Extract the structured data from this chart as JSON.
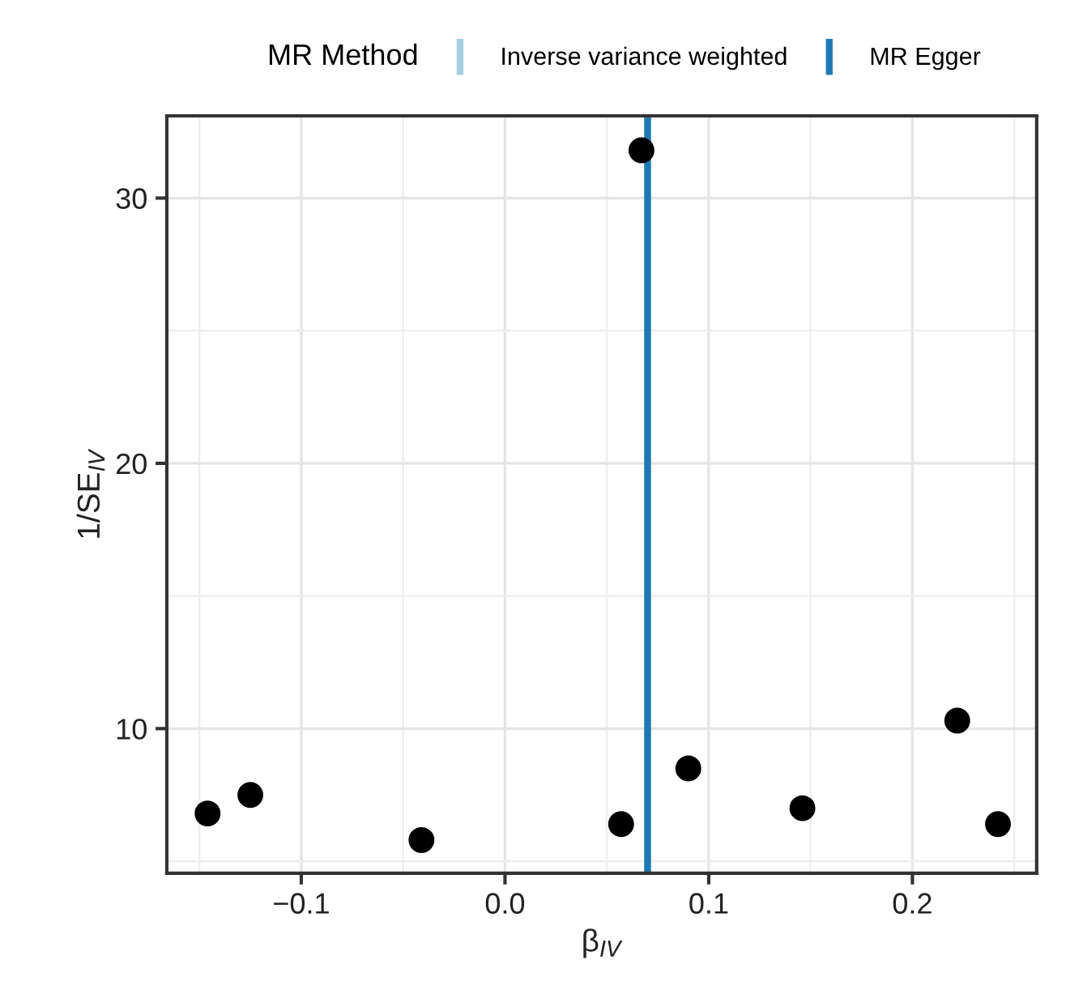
{
  "chart_data": {
    "type": "scatter",
    "xlabel": "β$_{IV}$",
    "ylabel": "1/SE$_{IV}$",
    "legend_title": "MR Method",
    "series": [
      {
        "color": "#000000",
        "x": [
          -0.146,
          -0.125,
          -0.041,
          0.057,
          0.067,
          0.09,
          0.146,
          0.222,
          0.242
        ],
        "values": [
          6.8,
          7.5,
          5.8,
          6.4,
          31.8,
          8.5,
          7.0,
          10.3,
          6.4
        ]
      }
    ],
    "ref_lines": [
      {
        "axis": "x",
        "value": 0.07,
        "label": "Inverse variance weighted",
        "color": "#a6cee3"
      },
      {
        "axis": "x",
        "value": 0.07,
        "label": "MR Egger",
        "color": "#1f78b4"
      }
    ],
    "xlim": [
      -0.166,
      0.261
    ],
    "xticks": [
      {
        "value": -0.1,
        "label": "−0.1"
      },
      {
        "value": 0.0,
        "label": "0.0"
      },
      {
        "value": 0.1,
        "label": "0.1"
      },
      {
        "value": 0.2,
        "label": "0.2"
      }
    ],
    "ylim": [
      4.55,
      33.1
    ],
    "yticks": [
      10,
      20,
      30
    ],
    "grid": true,
    "legend": "top",
    "marker": "circle"
  }
}
